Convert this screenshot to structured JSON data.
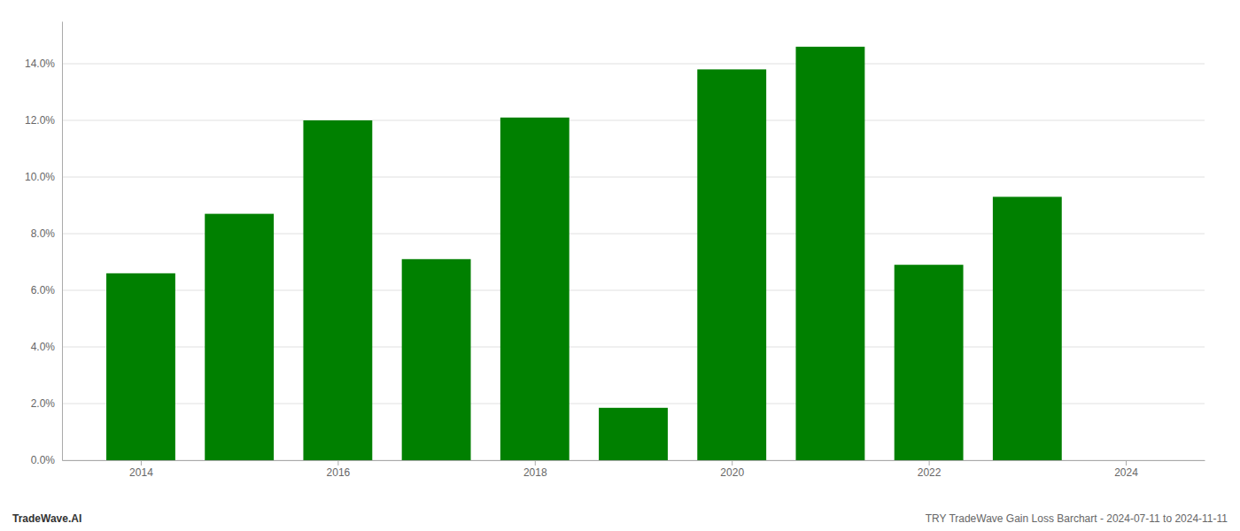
{
  "chart_data": {
    "type": "bar",
    "title": "TRY TradeWave Gain Loss Barchart - 2024-07-11 to 2024-11-11",
    "annotations": [
      "TradeWave.AI"
    ],
    "x": [
      2014,
      2015,
      2016,
      2017,
      2018,
      2019,
      2020,
      2021,
      2022,
      2023
    ],
    "values": [
      0.066,
      0.087,
      0.12,
      0.071,
      0.121,
      0.0185,
      0.138,
      0.146,
      0.069,
      0.093
    ],
    "color": "#008000",
    "xlim": [
      2013.2,
      2024.8
    ],
    "xticks": [
      2014,
      2016,
      2018,
      2020,
      2022,
      2024
    ],
    "ylim": [
      0,
      0.155
    ],
    "yticks": [
      {
        "value": 0.0,
        "label": "0.0%"
      },
      {
        "value": 0.02,
        "label": "2.0%"
      },
      {
        "value": 0.04,
        "label": "4.0%"
      },
      {
        "value": 0.06,
        "label": "6.0%"
      },
      {
        "value": 0.08,
        "label": "8.0%"
      },
      {
        "value": 0.1,
        "label": "10.0%"
      },
      {
        "value": 0.12,
        "label": "12.0%"
      },
      {
        "value": 0.14,
        "label": "14.0%"
      }
    ],
    "grid": true
  }
}
